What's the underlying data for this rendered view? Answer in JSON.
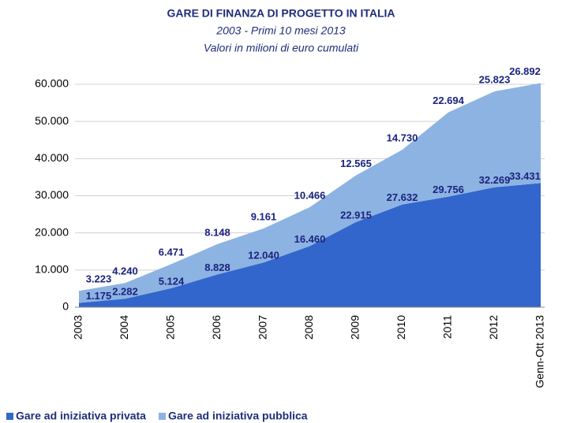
{
  "chart_data": {
    "type": "stacked_area",
    "title": "GARE DI FINANZA DI PROGETTO IN ITALIA",
    "subtitles": [
      "2003 - Primi 10 mesi 2013",
      "Valori in milioni di euro cumulati"
    ],
    "categories": [
      "2003",
      "2004",
      "2005",
      "2006",
      "2007",
      "2008",
      "2009",
      "2010",
      "2011",
      "2012",
      "Genn-Ott 2013"
    ],
    "series": [
      {
        "name": "Gare ad iniziativa privata",
        "color": "#3366cc",
        "values": [
          1175,
          2282,
          5124,
          8828,
          12040,
          16460,
          22915,
          27632,
          29756,
          32269,
          33431
        ],
        "value_labels": [
          "1.175",
          "2.282",
          "5.124",
          "8.828",
          "12.040",
          "16.460",
          "22.915",
          "27.632",
          "29.756",
          "32.269",
          "33.431"
        ]
      },
      {
        "name": "Gare ad iniziativa pubblica",
        "color": "#8db3e2",
        "values": [
          3223,
          4240,
          6471,
          8148,
          9161,
          10466,
          12565,
          14730,
          22694,
          25823,
          26892
        ],
        "value_labels": [
          "3.223",
          "4.240",
          "6.471",
          "8.148",
          "9.161",
          "10.466",
          "12.565",
          "14.730",
          "22.694",
          "25.823",
          "26.892"
        ]
      }
    ],
    "ylim": [
      0,
      60000
    ],
    "yticks": [
      0,
      {
        "value": 10000,
        "label": "10.000"
      },
      {
        "value": 20000,
        "label": "20.000"
      },
      {
        "value": 30000,
        "label": "30.000"
      },
      {
        "value": 40000,
        "label": "40.000"
      },
      {
        "value": 50000,
        "label": "50.000"
      },
      {
        "value": 60000,
        "label": "60.000"
      }
    ],
    "grid": true,
    "legend": "bottom"
  }
}
